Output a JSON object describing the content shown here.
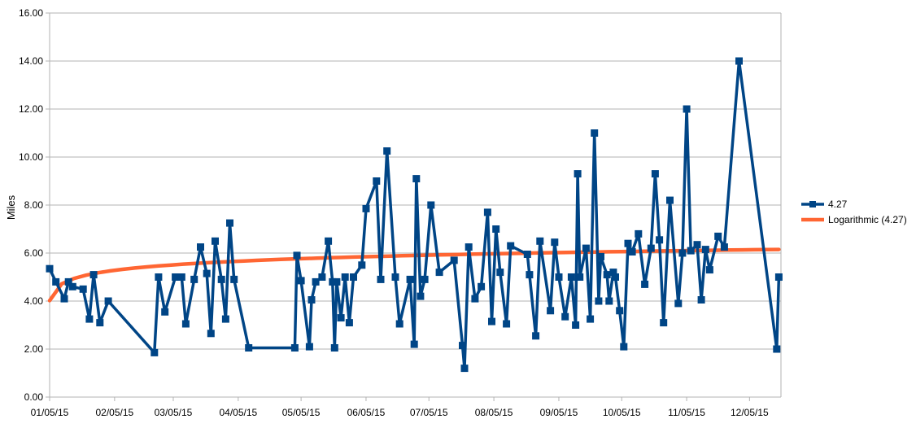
{
  "chart_data": {
    "type": "line",
    "title": "",
    "xlabel": "",
    "ylabel": "Miles",
    "xlim": [
      "2015-01-05",
      "2015-12-20"
    ],
    "ylim": [
      0,
      16
    ],
    "x_ticks": [
      "01/05/15",
      "02/05/15",
      "03/05/15",
      "04/05/15",
      "05/05/15",
      "06/05/15",
      "07/05/15",
      "08/05/15",
      "09/05/15",
      "10/05/15",
      "11/05/15",
      "12/05/15"
    ],
    "y_ticks": [
      "0.00",
      "2.00",
      "4.00",
      "6.00",
      "8.00",
      "10.00",
      "12.00",
      "14.00",
      "16.00"
    ],
    "grid": "horizontal",
    "legend_position": "right",
    "series": [
      {
        "name": "4.27",
        "color": "#004586",
        "marker": "square",
        "points": [
          [
            "2015-01-05",
            5.35
          ],
          [
            "2015-01-08",
            4.8
          ],
          [
            "2015-01-12",
            4.1
          ],
          [
            "2015-01-14",
            4.8
          ],
          [
            "2015-01-16",
            4.6
          ],
          [
            "2015-01-21",
            4.5
          ],
          [
            "2015-01-24",
            3.25
          ],
          [
            "2015-01-26",
            5.1
          ],
          [
            "2015-01-29",
            3.1
          ],
          [
            "2015-02-02",
            4.0
          ],
          [
            "2015-02-24",
            1.85
          ],
          [
            "2015-02-26",
            5.0
          ],
          [
            "2015-03-01",
            3.55
          ],
          [
            "2015-03-06",
            5.0
          ],
          [
            "2015-03-09",
            5.0
          ],
          [
            "2015-03-11",
            3.05
          ],
          [
            "2015-03-15",
            4.9
          ],
          [
            "2015-03-18",
            6.25
          ],
          [
            "2015-03-21",
            5.15
          ],
          [
            "2015-03-23",
            2.65
          ],
          [
            "2015-03-25",
            6.5
          ],
          [
            "2015-03-28",
            4.9
          ],
          [
            "2015-03-30",
            3.25
          ],
          [
            "2015-04-01",
            7.25
          ],
          [
            "2015-04-03",
            4.9
          ],
          [
            "2015-04-10",
            2.05
          ],
          [
            "2015-05-02",
            2.05
          ],
          [
            "2015-05-03",
            5.9
          ],
          [
            "2015-05-05",
            4.85
          ],
          [
            "2015-05-09",
            2.1
          ],
          [
            "2015-05-10",
            4.05
          ],
          [
            "2015-05-12",
            4.8
          ],
          [
            "2015-05-15",
            5.0
          ],
          [
            "2015-05-18",
            6.5
          ],
          [
            "2015-05-20",
            4.8
          ],
          [
            "2015-05-21",
            2.05
          ],
          [
            "2015-05-22",
            4.8
          ],
          [
            "2015-05-24",
            3.3
          ],
          [
            "2015-05-26",
            5.0
          ],
          [
            "2015-05-28",
            3.1
          ],
          [
            "2015-05-30",
            5.0
          ],
          [
            "2015-06-03",
            5.5
          ],
          [
            "2015-06-05",
            7.85
          ],
          [
            "2015-06-10",
            9.0
          ],
          [
            "2015-06-12",
            4.9
          ],
          [
            "2015-06-15",
            10.25
          ],
          [
            "2015-06-19",
            5.0
          ],
          [
            "2015-06-21",
            3.05
          ],
          [
            "2015-06-26",
            4.9
          ],
          [
            "2015-06-28",
            2.2
          ],
          [
            "2015-06-29",
            9.1
          ],
          [
            "2015-07-01",
            4.2
          ],
          [
            "2015-07-03",
            4.9
          ],
          [
            "2015-07-06",
            8.0
          ],
          [
            "2015-07-10",
            5.2
          ],
          [
            "2015-07-17",
            5.7
          ],
          [
            "2015-07-21",
            2.15
          ],
          [
            "2015-07-22",
            1.2
          ],
          [
            "2015-07-24",
            6.25
          ],
          [
            "2015-07-27",
            4.1
          ],
          [
            "2015-07-30",
            4.6
          ],
          [
            "2015-08-02",
            7.7
          ],
          [
            "2015-08-04",
            3.15
          ],
          [
            "2015-08-06",
            7.0
          ],
          [
            "2015-08-08",
            5.2
          ],
          [
            "2015-08-11",
            3.05
          ],
          [
            "2015-08-13",
            6.3
          ],
          [
            "2015-08-21",
            5.95
          ],
          [
            "2015-08-22",
            5.1
          ],
          [
            "2015-08-25",
            2.55
          ],
          [
            "2015-08-27",
            6.5
          ],
          [
            "2015-09-01",
            3.6
          ],
          [
            "2015-09-03",
            6.45
          ],
          [
            "2015-09-05",
            5.0
          ],
          [
            "2015-09-08",
            3.35
          ],
          [
            "2015-09-11",
            5.0
          ],
          [
            "2015-09-13",
            3.0
          ],
          [
            "2015-09-14",
            9.3
          ],
          [
            "2015-09-15",
            5.0
          ],
          [
            "2015-09-18",
            6.2
          ],
          [
            "2015-09-20",
            3.25
          ],
          [
            "2015-09-22",
            11.0
          ],
          [
            "2015-09-24",
            4.0
          ],
          [
            "2015-09-25",
            5.85
          ],
          [
            "2015-09-28",
            5.1
          ],
          [
            "2015-09-29",
            4.0
          ],
          [
            "2015-10-01",
            5.2
          ],
          [
            "2015-10-02",
            5.0
          ],
          [
            "2015-10-04",
            3.6
          ],
          [
            "2015-10-06",
            2.1
          ],
          [
            "2015-10-08",
            6.4
          ],
          [
            "2015-10-10",
            6.05
          ],
          [
            "2015-10-13",
            6.8
          ],
          [
            "2015-10-16",
            4.7
          ],
          [
            "2015-10-19",
            6.2
          ],
          [
            "2015-10-21",
            9.3
          ],
          [
            "2015-10-23",
            6.55
          ],
          [
            "2015-10-25",
            3.1
          ],
          [
            "2015-10-28",
            8.2
          ],
          [
            "2015-11-01",
            3.9
          ],
          [
            "2015-11-03",
            6.0
          ],
          [
            "2015-11-05",
            12.0
          ],
          [
            "2015-11-07",
            6.1
          ],
          [
            "2015-11-10",
            6.35
          ],
          [
            "2015-11-12",
            4.05
          ],
          [
            "2015-11-14",
            6.15
          ],
          [
            "2015-11-16",
            5.3
          ],
          [
            "2015-11-20",
            6.7
          ],
          [
            "2015-11-23",
            6.25
          ],
          [
            "2015-11-30",
            14.0
          ],
          [
            "2015-12-18",
            2.0
          ],
          [
            "2015-12-19",
            5.0
          ]
        ]
      },
      {
        "name": "Logarithmic (4.27)",
        "color": "#ff6633",
        "marker": "none",
        "points": [
          [
            "2015-01-05",
            4.02
          ],
          [
            "2015-12-19",
            6.15
          ]
        ]
      }
    ]
  }
}
